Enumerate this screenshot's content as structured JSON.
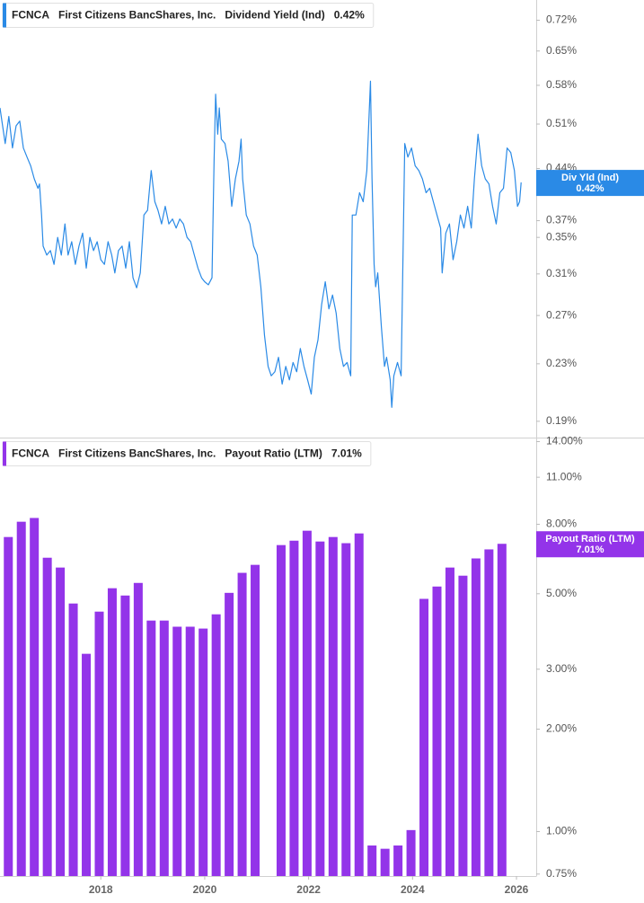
{
  "chart_data": [
    {
      "type": "line",
      "ticker": "FCNCA",
      "company": "First Citizens BancShares, Inc.",
      "log_scale": true,
      "xlim": [
        2016.06,
        2026.38
      ],
      "ylim": [
        0.18,
        0.77
      ],
      "yticks": [
        {
          "value": 0.72,
          "label": "0.72%"
        },
        {
          "value": 0.65,
          "label": "0.65%"
        },
        {
          "value": 0.58,
          "label": "0.58%"
        },
        {
          "value": 0.51,
          "label": "0.51%"
        },
        {
          "value": 0.44,
          "label": "0.44%"
        },
        {
          "value": 0.37,
          "label": "0.37%"
        },
        {
          "value": 0.35,
          "label": "0.35%"
        },
        {
          "value": 0.31,
          "label": "0.31%"
        },
        {
          "value": 0.27,
          "label": "0.27%"
        },
        {
          "value": 0.23,
          "label": "0.23%"
        },
        {
          "value": 0.19,
          "label": "0.19%"
        }
      ],
      "series": [
        {
          "name": "Dividend Yield (Ind)",
          "short_name": "Div Yld (Ind)",
          "color": "#2a8ae6",
          "current": 0.42,
          "current_label": "0.42%",
          "x": [
            2016.06,
            2016.11,
            2016.16,
            2016.23,
            2016.3,
            2016.37,
            2016.44,
            2016.51,
            2016.58,
            2016.65,
            2016.72,
            2016.79,
            2016.82,
            2016.86,
            2016.89,
            2016.96,
            2017.03,
            2017.1,
            2017.17,
            2017.24,
            2017.31,
            2017.37,
            2017.44,
            2017.51,
            2017.58,
            2017.65,
            2017.72,
            2017.79,
            2017.86,
            2017.93,
            2018.0,
            2018.07,
            2018.14,
            2018.21,
            2018.27,
            2018.34,
            2018.41,
            2018.48,
            2018.55,
            2018.62,
            2018.69,
            2018.76,
            2018.83,
            2018.9,
            2018.97,
            2019.04,
            2019.1,
            2019.17,
            2019.24,
            2019.31,
            2019.38,
            2019.45,
            2019.52,
            2019.59,
            2019.66,
            2019.73,
            2019.8,
            2019.87,
            2019.94,
            2020.0,
            2020.07,
            2020.14,
            2020.18,
            2020.21,
            2020.25,
            2020.28,
            2020.32,
            2020.39,
            2020.45,
            2020.52,
            2020.59,
            2020.66,
            2020.7,
            2020.73,
            2020.8,
            2020.87,
            2020.94,
            2021.01,
            2021.08,
            2021.15,
            2021.22,
            2021.28,
            2021.35,
            2021.42,
            2021.49,
            2021.56,
            2021.63,
            2021.7,
            2021.77,
            2021.84,
            2021.91,
            2021.98,
            2022.05,
            2022.11,
            2022.18,
            2022.25,
            2022.32,
            2022.39,
            2022.46,
            2022.53,
            2022.6,
            2022.67,
            2022.74,
            2022.81,
            2022.84,
            2022.91,
            2022.98,
            2023.05,
            2023.12,
            2023.19,
            2023.22,
            2023.26,
            2023.29,
            2023.33,
            2023.4,
            2023.46,
            2023.5,
            2023.57,
            2023.6,
            2023.64,
            2023.71,
            2023.78,
            2023.85,
            2023.91,
            2023.98,
            2024.05,
            2024.12,
            2024.19,
            2024.26,
            2024.33,
            2024.4,
            2024.47,
            2024.54,
            2024.57,
            2024.64,
            2024.71,
            2024.78,
            2024.85,
            2024.92,
            2024.99,
            2025.06,
            2025.13,
            2025.19,
            2025.26,
            2025.33,
            2025.4,
            2025.47,
            2025.54,
            2025.61,
            2025.68,
            2025.75,
            2025.82,
            2025.89,
            2025.96,
            2026.02,
            2026.06,
            2026.09
          ],
          "values": [
            0.538,
            0.507,
            0.478,
            0.523,
            0.471,
            0.507,
            0.515,
            0.471,
            0.457,
            0.444,
            0.425,
            0.412,
            0.418,
            0.377,
            0.34,
            0.33,
            0.335,
            0.32,
            0.35,
            0.33,
            0.366,
            0.33,
            0.345,
            0.32,
            0.34,
            0.355,
            0.316,
            0.35,
            0.335,
            0.345,
            0.325,
            0.32,
            0.345,
            0.33,
            0.311,
            0.335,
            0.34,
            0.316,
            0.345,
            0.306,
            0.296,
            0.311,
            0.377,
            0.383,
            0.437,
            0.394,
            0.383,
            0.366,
            0.388,
            0.366,
            0.372,
            0.361,
            0.372,
            0.366,
            0.35,
            0.345,
            0.33,
            0.316,
            0.306,
            0.302,
            0.299,
            0.306,
            0.451,
            0.563,
            0.493,
            0.538,
            0.485,
            0.478,
            0.451,
            0.388,
            0.425,
            0.451,
            0.485,
            0.425,
            0.377,
            0.366,
            0.34,
            0.33,
            0.297,
            0.253,
            0.228,
            0.221,
            0.224,
            0.235,
            0.215,
            0.228,
            0.218,
            0.231,
            0.224,
            0.242,
            0.228,
            0.218,
            0.208,
            0.235,
            0.249,
            0.28,
            0.302,
            0.276,
            0.289,
            0.272,
            0.242,
            0.228,
            0.231,
            0.221,
            0.377,
            0.377,
            0.406,
            0.394,
            0.437,
            0.588,
            0.425,
            0.32,
            0.297,
            0.311,
            0.26,
            0.228,
            0.235,
            0.218,
            0.199,
            0.221,
            0.231,
            0.221,
            0.478,
            0.457,
            0.471,
            0.444,
            0.437,
            0.425,
            0.406,
            0.412,
            0.394,
            0.377,
            0.361,
            0.311,
            0.355,
            0.366,
            0.325,
            0.345,
            0.377,
            0.361,
            0.388,
            0.361,
            0.425,
            0.493,
            0.444,
            0.425,
            0.418,
            0.388,
            0.366,
            0.406,
            0.412,
            0.471,
            0.464,
            0.437,
            0.388,
            0.394,
            0.42
          ]
        }
      ]
    },
    {
      "type": "bar",
      "ticker": "FCNCA",
      "company": "First Citizens BancShares, Inc.",
      "log_scale": true,
      "xlim": [
        2016.06,
        2026.38
      ],
      "ylim": [
        0.74,
        14.3
      ],
      "xticks": [
        2018,
        2020,
        2022,
        2024,
        2026
      ],
      "yticks": [
        {
          "value": 14,
          "label": "14.00%"
        },
        {
          "value": 11,
          "label": "11.00%"
        },
        {
          "value": 8,
          "label": "8.00%"
        },
        {
          "value": 5,
          "label": "5.00%"
        },
        {
          "value": 3,
          "label": "3.00%"
        },
        {
          "value": 2,
          "label": "2.00%"
        },
        {
          "value": 1,
          "label": "1.00%"
        },
        {
          "value": 0.75,
          "label": "0.75%"
        }
      ],
      "series": [
        {
          "name": "Payout Ratio (LTM)",
          "short_name": "Payout Ratio (LTM)",
          "color": "#9334e9",
          "current": 7.01,
          "current_label": "7.01%",
          "x": [
            2016.22,
            2016.47,
            2016.72,
            2016.97,
            2017.22,
            2017.47,
            2017.72,
            2017.97,
            2018.22,
            2018.47,
            2018.72,
            2018.97,
            2019.22,
            2019.47,
            2019.72,
            2019.97,
            2020.22,
            2020.47,
            2020.72,
            2020.97,
            2021.22,
            2021.47,
            2021.72,
            2021.97,
            2022.22,
            2022.47,
            2022.72,
            2022.97,
            2023.22,
            2023.47,
            2023.72,
            2023.97,
            2024.22,
            2024.47,
            2024.72,
            2024.97,
            2025.22,
            2025.47,
            2025.72
          ],
          "values": [
            7.34,
            8.14,
            8.35,
            6.38,
            5.97,
            4.68,
            3.33,
            4.43,
            5.19,
            4.94,
            5.38,
            4.17,
            4.17,
            4.0,
            4.0,
            3.95,
            4.35,
            5.03,
            5.76,
            6.08,
            null,
            6.95,
            7.16,
            7.66,
            7.12,
            7.34,
            7.04,
            7.52,
            0.91,
            0.89,
            0.91,
            1.01,
            4.83,
            5.25,
            5.97,
            5.65,
            6.35,
            6.75,
            7.01
          ]
        }
      ]
    }
  ]
}
